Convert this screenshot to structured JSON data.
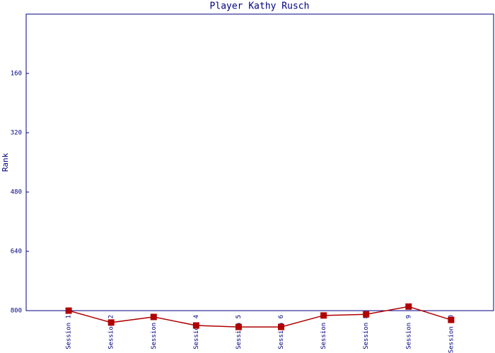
{
  "chart_data": {
    "type": "line",
    "title": "Player Kathy Rusch",
    "y_label": "Rank",
    "categories": [
      "Session 1",
      "Session 2",
      "Session 3",
      "Session 4",
      "Session 5",
      "Session 6",
      "Session 7",
      "Session 8",
      "Session 9",
      "Session 10"
    ],
    "series": [
      {
        "name": "Rank",
        "color": "#b00000",
        "values": [
          800,
          832,
          817,
          840,
          844,
          844,
          813,
          810,
          789,
          825
        ]
      }
    ],
    "ylim": [
      800,
      0
    ],
    "yticks": [
      160,
      320,
      480,
      640,
      800
    ],
    "grid": false
  }
}
